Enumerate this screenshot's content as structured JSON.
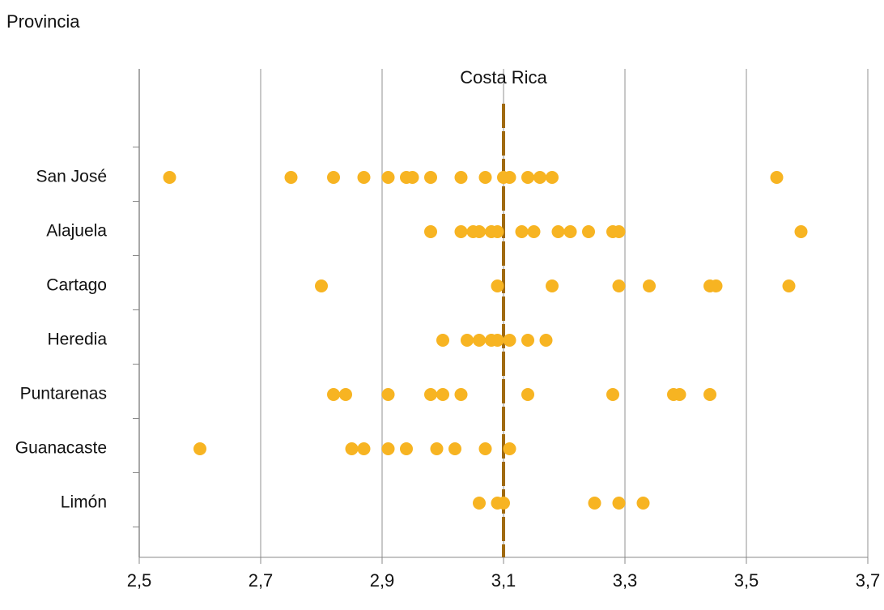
{
  "chart_data": {
    "type": "dot",
    "y_label": "Provincia",
    "categories": [
      "San José",
      "Alajuela",
      "Cartago",
      "Heredia",
      "Puntarenas",
      "Guanacaste",
      "Limón"
    ],
    "values": [
      [
        2.55,
        2.75,
        2.82,
        2.87,
        2.91,
        2.94,
        2.95,
        2.98,
        3.03,
        3.07,
        3.1,
        3.11,
        3.14,
        3.16,
        3.18,
        3.55
      ],
      [
        2.98,
        3.03,
        3.05,
        3.06,
        3.08,
        3.09,
        3.13,
        3.15,
        3.19,
        3.21,
        3.24,
        3.28,
        3.29,
        3.59
      ],
      [
        2.8,
        3.09,
        3.18,
        3.29,
        3.34,
        3.44,
        3.45,
        3.57
      ],
      [
        3.0,
        3.04,
        3.06,
        3.08,
        3.09,
        3.11,
        3.14,
        3.17
      ],
      [
        2.82,
        2.84,
        2.91,
        2.98,
        3.0,
        3.03,
        3.14,
        3.28,
        3.38,
        3.39,
        3.44
      ],
      [
        2.6,
        2.85,
        2.87,
        2.91,
        2.94,
        2.99,
        3.02,
        3.07,
        3.11
      ],
      [
        3.06,
        3.09,
        3.1,
        3.25,
        3.29,
        3.33
      ]
    ],
    "color": "#f7b422",
    "reference_line": {
      "label": "Costa Rica",
      "value": 3.1,
      "color": "#a06a10"
    },
    "xlim": [
      2.5,
      3.7
    ],
    "xticks": [
      {
        "value": 2.5,
        "label": "2,5"
      },
      {
        "value": 2.7,
        "label": "2,7"
      },
      {
        "value": 2.9,
        "label": "2,9"
      },
      {
        "value": 3.1,
        "label": "3,1"
      },
      {
        "value": 3.3,
        "label": "3,3"
      },
      {
        "value": 3.5,
        "label": "3,5"
      },
      {
        "value": 3.7,
        "label": "3,7"
      }
    ],
    "grid": true
  }
}
